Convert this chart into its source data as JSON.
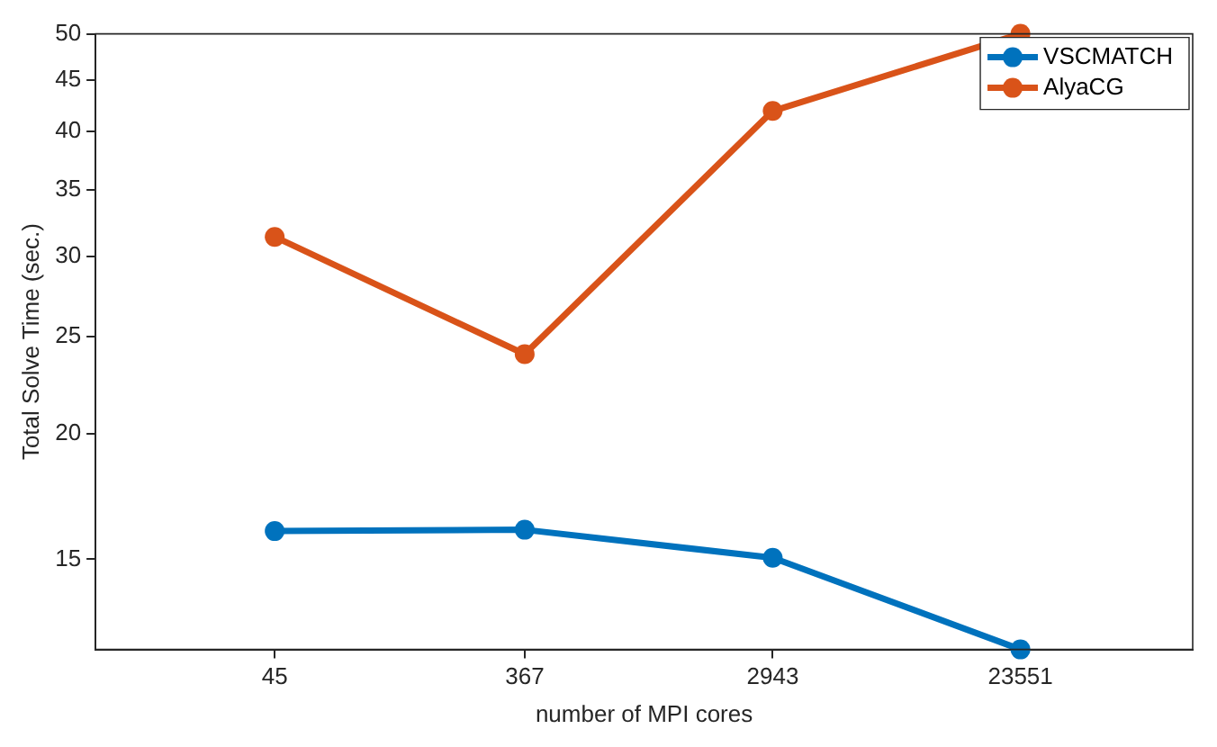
{
  "chart_data": {
    "type": "line",
    "xlabel": "number of MPI cores",
    "ylabel": "Total Solve Time (sec.)",
    "x": [
      45,
      367,
      2943,
      23551
    ],
    "series": [
      {
        "name": "VSCMATCH",
        "color": "#0072bd",
        "values": [
          16.0,
          16.05,
          15.05,
          12.2
        ]
      },
      {
        "name": "AlyaCG",
        "color": "#d95319",
        "values": [
          31.4,
          24.0,
          41.9,
          50
        ]
      }
    ],
    "log": "xy",
    "xlim": [
      10,
      100000
    ],
    "xticks": [
      45,
      367,
      2943,
      23551
    ],
    "ylim": [
      12.2,
      50
    ],
    "yticks": [
      15,
      20,
      25,
      30,
      35,
      40,
      45,
      50
    ],
    "grid": false,
    "legend": "top right",
    "marker": "circle",
    "line_style": "solid"
  }
}
